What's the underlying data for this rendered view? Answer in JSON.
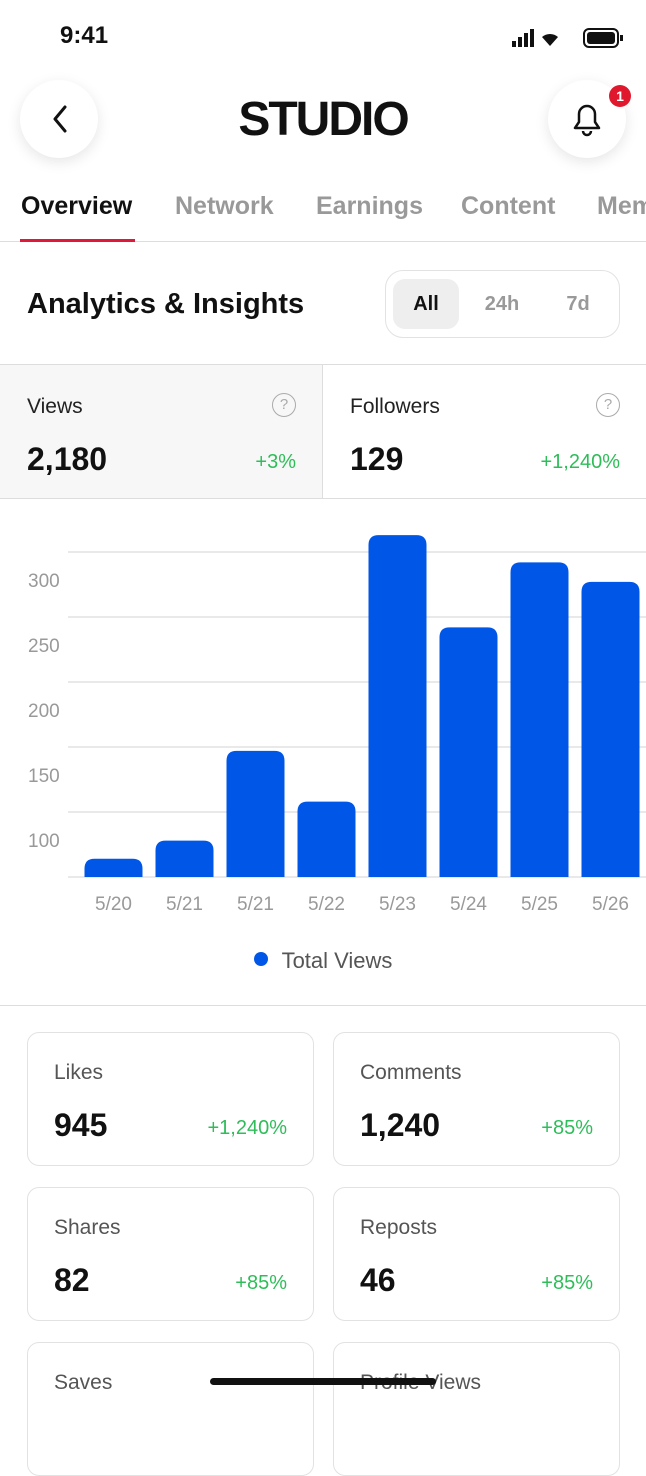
{
  "status_bar": {
    "time": "9:41"
  },
  "header": {
    "title": "STUDIO",
    "notification_count": "1"
  },
  "tabs": [
    "Overview",
    "Network",
    "Earnings",
    "Content",
    "Members"
  ],
  "section": {
    "title": "Analytics & Insights",
    "filters": [
      "All",
      "24h",
      "7d"
    ]
  },
  "summary": [
    {
      "label": "Views",
      "value": "2,180",
      "change": "+3%"
    },
    {
      "label": "Followers",
      "value": "129",
      "change": "+1,240%"
    }
  ],
  "chart_data": {
    "type": "bar",
    "categories": [
      "5/20",
      "5/21",
      "5/21",
      "5/22",
      "5/23",
      "5/24",
      "5/25",
      "5/26"
    ],
    "series": [
      {
        "name": "Total Views",
        "color": "#0057e7",
        "values": [
          64,
          78,
          147,
          108,
          313,
          242,
          292,
          277
        ]
      }
    ],
    "ylim": [
      50,
      320
    ],
    "yticks": [
      100,
      150,
      200,
      250,
      300
    ],
    "grid": true
  },
  "metrics": [
    {
      "label": "Likes",
      "value": "945",
      "change": "+1,240%"
    },
    {
      "label": "Comments",
      "value": "1,240",
      "change": "+85%"
    },
    {
      "label": "Shares",
      "value": "82",
      "change": "+85%"
    },
    {
      "label": "Reposts",
      "value": "46",
      "change": "+85%"
    },
    {
      "label": "Saves"
    },
    {
      "label": "Profile Views"
    }
  ]
}
